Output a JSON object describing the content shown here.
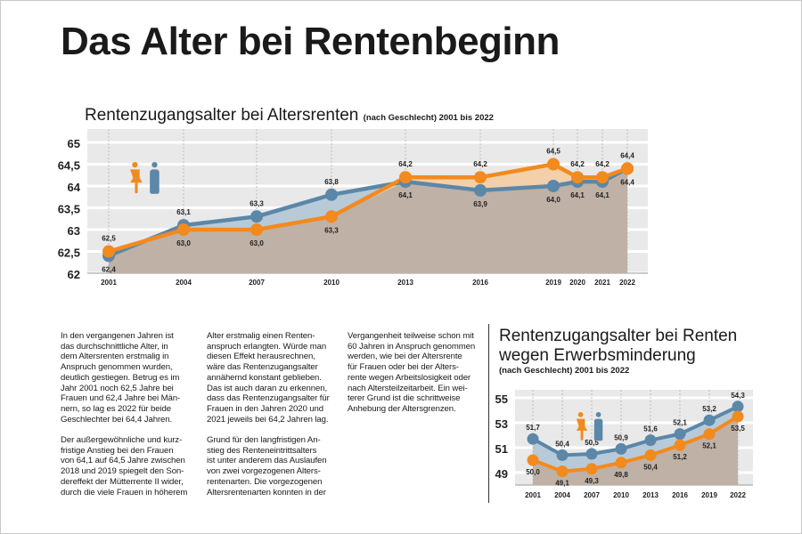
{
  "page_title": "Das Alter bei Rentenbeginn",
  "colors": {
    "women": "#f28a1e",
    "men": "#5b87a8",
    "overlap_fill": "#bfb1a6",
    "women_fill": "#f3cfaa",
    "men_fill": "#b8cad8",
    "plot_bg": "#e9e9e9"
  },
  "legend_icons": [
    "woman-icon",
    "man-icon"
  ],
  "text_columns": [
    [
      [
        "In den vergangenen Jahren ist",
        "das durchschnittliche Alter, in",
        "dem Altersrenten erstmalig in",
        "Anspruch genommen wurden,",
        "deutlich gestiegen. Betrug es im",
        "Jahr 2001 noch 62,5 Jahre bei",
        "Frauen und 62,4 Jahre bei Män-",
        "nern, so lag es 2022 für beide",
        "Geschlechter bei 64,4 Jahren."
      ],
      [
        "Der außergewöhnliche und kurz-",
        "fristige Anstieg bei den Frauen",
        "von 64,1 auf 64,5 Jahre zwischen",
        "2018 und 2019 spiegelt den Son-",
        "dereffekt der Mütterrente II wider,",
        "durch die viele Frauen in höherem"
      ]
    ],
    [
      [
        "Alter erstmalig einen Renten-",
        "anspruch erlangten. Würde man",
        "diesen Effekt herausrechnen,",
        "wäre das Rentenzugangsalter",
        "annähernd konstant geblieben.",
        "Das ist auch daran zu erkennen,",
        "dass das Rentenzugangsalter für",
        "Frauen in den Jahren 2020 und",
        "2021 jeweils bei 64,2 Jahren lag."
      ],
      [
        "Grund für den langfristigen An-",
        "stieg des Renteneintrittsalters",
        "ist unter anderem das Auslaufen",
        "von zwei vorgezogenen Alters-",
        "rentenarten. Die vorgezogenen",
        "Altersrentenarten konnten in der"
      ]
    ],
    [
      [
        "Vergangenheit teilweise schon mit",
        "60 Jahren in Anspruch genommen",
        "werden, wie bei der Altersrente",
        "für Frauen oder bei der Alters-",
        "rente wegen Arbeitslosigkeit oder",
        "nach Altersteilzeitarbeit. Ein wei-",
        "terer Grund ist die schrittweise",
        "Anhebung der Altersgrenzen."
      ]
    ]
  ],
  "chart_data": [
    {
      "type": "area",
      "title": "Rentenzugangsalter bei Altersrenten",
      "subtitle": "(nach Geschlecht) 2001 bis 2022",
      "categories": [
        "2001",
        "2004",
        "2007",
        "2010",
        "2013",
        "2016",
        "2019",
        "2020",
        "2021",
        "2022"
      ],
      "series": [
        {
          "key": "women",
          "values": [
            62.5,
            63.0,
            63.0,
            63.3,
            64.2,
            64.2,
            64.5,
            64.2,
            64.2,
            64.4
          ],
          "labels": [
            "62,5",
            "63,0",
            "63,0",
            "63,3",
            "64,2",
            "64,2",
            "64,5",
            "64,2",
            "64,2",
            "64,4"
          ]
        },
        {
          "key": "men",
          "values": [
            62.4,
            63.1,
            63.3,
            63.8,
            64.1,
            63.9,
            64.0,
            64.1,
            64.1,
            64.4
          ],
          "labels": [
            "62,4",
            "63,1",
            "63,3",
            "63,8",
            "64,1",
            "63,9",
            "64,0",
            "64,1",
            "64,1",
            "64,4"
          ]
        }
      ],
      "ylim": [
        62,
        65
      ],
      "yticks": [
        "62",
        "62,5",
        "63",
        "63,5",
        "64",
        "64,5",
        "65"
      ],
      "grid": true
    },
    {
      "type": "area",
      "title_lines": [
        "Rentenzugangsalter bei Renten",
        "wegen Erwerbsminderung"
      ],
      "subtitle": "(nach Geschlecht) 2001 bis 2022",
      "categories": [
        "2001",
        "2004",
        "2007",
        "2010",
        "2013",
        "2016",
        "2019",
        "2022"
      ],
      "series": [
        {
          "key": "women",
          "values": [
            50.0,
            49.1,
            49.3,
            49.8,
            50.4,
            51.2,
            52.1,
            53.5
          ],
          "labels": [
            "50,0",
            "49,1",
            "49,3",
            "49,8",
            "50,4",
            "51,2",
            "52,1",
            "53,5"
          ]
        },
        {
          "key": "men",
          "values": [
            51.7,
            50.4,
            50.5,
            50.9,
            51.6,
            52.1,
            53.2,
            54.3
          ],
          "labels": [
            "51,7",
            "50,4",
            "50,5",
            "50,9",
            "51,6",
            "52,1",
            "53,2",
            "54,3"
          ]
        }
      ],
      "ylim": [
        48.2,
        55.6
      ],
      "yticks": [
        "49",
        "51",
        "53",
        "55"
      ],
      "ytick_values": [
        49,
        51,
        53,
        55
      ],
      "grid": true
    }
  ]
}
